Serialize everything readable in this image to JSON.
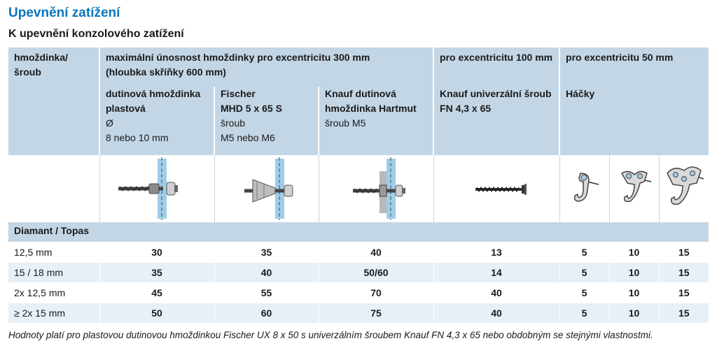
{
  "title": "Upevnění zatížení",
  "subtitle": "K upevnění konzolového zatížení",
  "header": {
    "col0": [
      "hmoždinka/",
      "šroub"
    ],
    "group_main": [
      "maximální únosnost hmoždinky pro excentricitu 300 mm",
      "(hloubka skříňky 600 mm)"
    ],
    "group_100": "pro excentricitu 100 mm",
    "group_50": "pro excentricitu 50 mm",
    "sub": [
      {
        "bold": [
          "dutinová hmoždinka",
          "plastová"
        ],
        "normal": [
          "Ø",
          "8 nebo 10 mm"
        ]
      },
      {
        "bold": [
          "Fischer",
          "MHD 5 x 65 S"
        ],
        "normal": [
          "šroub",
          "M5 nebo M6"
        ]
      },
      {
        "bold": [
          "Knauf dutinová",
          "hmoždinka Hartmut"
        ],
        "normal": [
          "šroub M5"
        ]
      },
      {
        "bold": [
          "Knauf univerzální šroub",
          "FN 4,3 x 65"
        ],
        "normal": []
      },
      {
        "bold": [
          "Háčky"
        ],
        "normal": []
      }
    ]
  },
  "icons": [
    "plastic-anchor-icon",
    "fischer-mhd-anchor-icon",
    "knauf-hartmut-anchor-icon",
    "universal-screw-icon",
    "hook-small-icon",
    "hook-medium-icon",
    "hook-large-icon"
  ],
  "section": "Diamant / Topas",
  "rows": [
    {
      "label": "12,5 mm",
      "values": [
        "30",
        "35",
        "40",
        "13",
        "5",
        "10",
        "15"
      ]
    },
    {
      "label": "15 / 18 mm",
      "values": [
        "35",
        "40",
        "50/60",
        "14",
        "5",
        "10",
        "15"
      ]
    },
    {
      "label": "2x 12,5 mm",
      "values": [
        "45",
        "55",
        "70",
        "40",
        "5",
        "10",
        "15"
      ]
    },
    {
      "label": "≥ 2x 15 mm",
      "values": [
        "50",
        "60",
        "75",
        "40",
        "5",
        "10",
        "15"
      ]
    }
  ],
  "footnote": "Hodnoty platí pro plastovou dutinovou hmoždinkou Fischer UX 8 x 50 s univerzálním šroubem Knauf FN 4,3 x 65 nebo obdobným se stejnými vlastnostmi.",
  "colors": {
    "title": "#0a76bc",
    "header_bg": "#c3d6e5",
    "row_alt": "#e7f0f6",
    "board": "#9fcde8"
  }
}
